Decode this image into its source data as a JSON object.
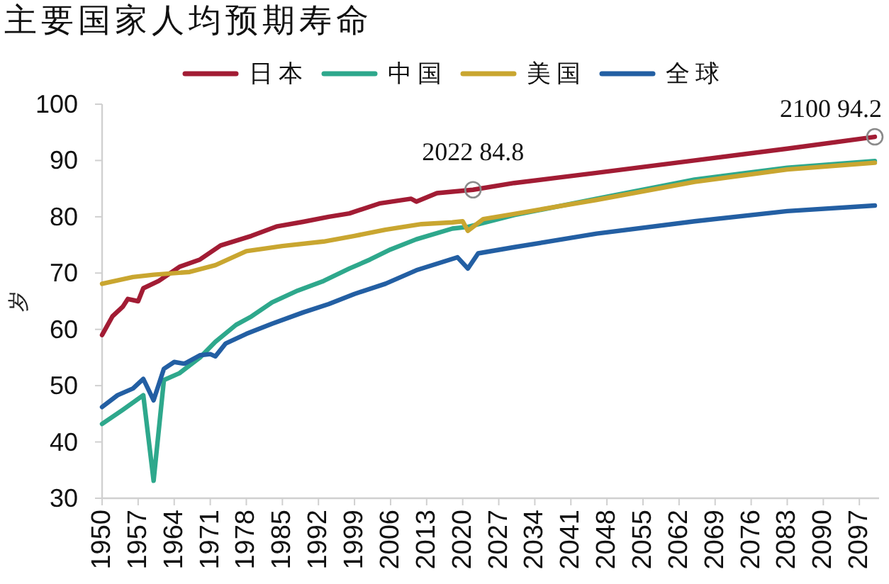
{
  "chart_data": {
    "type": "line",
    "title": "主要国家人均预期寿命",
    "ylabel": "岁",
    "xlim": [
      1950,
      2100
    ],
    "ylim": [
      30,
      100
    ],
    "xticks": [
      1950,
      1957,
      1964,
      1971,
      1978,
      1985,
      1992,
      1999,
      2006,
      2013,
      2020,
      2027,
      2034,
      2041,
      2048,
      2055,
      2062,
      2069,
      2076,
      2083,
      2090,
      2097
    ],
    "yticks": [
      30,
      40,
      50,
      60,
      70,
      80,
      90,
      100
    ],
    "legend": "top",
    "series": [
      {
        "name": "日本",
        "color": "#a21c34",
        "x": [
          1950,
          1952,
          1954,
          1955,
          1957,
          1958,
          1961,
          1965,
          1969,
          1973,
          1979,
          1984,
          1989,
          1994,
          1998,
          2004,
          2010,
          2011,
          2015,
          2022,
          2030,
          2046,
          2065,
          2083,
          2100
        ],
        "values": [
          59.0,
          62.3,
          64.0,
          65.4,
          65.0,
          67.3,
          68.6,
          71.1,
          72.4,
          74.9,
          76.6,
          78.3,
          79.1,
          80.0,
          80.6,
          82.4,
          83.2,
          82.7,
          84.2,
          84.8,
          86.0,
          87.8,
          90.0,
          92.1,
          94.2
        ]
      },
      {
        "name": "中国",
        "color": "#2ea88c",
        "x": [
          1950,
          1954,
          1958,
          1960,
          1962,
          1965,
          1969,
          1972,
          1976,
          1979,
          1983,
          1988,
          1993,
          1998,
          2002,
          2006,
          2011,
          2018,
          2021,
          2030,
          2046,
          2065,
          2083,
          2100
        ],
        "values": [
          43.2,
          45.7,
          48.3,
          33.1,
          51.0,
          52.2,
          55.0,
          57.8,
          60.8,
          62.3,
          64.8,
          66.9,
          68.6,
          70.8,
          72.4,
          74.2,
          76.0,
          77.9,
          78.2,
          80.3,
          83.2,
          86.6,
          88.7,
          89.9
        ]
      },
      {
        "name": "美国",
        "color": "#c9a630",
        "x": [
          1950,
          1956,
          1960,
          1967,
          1972,
          1978,
          1985,
          1993,
          1999,
          2005,
          2012,
          2018,
          2020,
          2021,
          2022,
          2024,
          2030,
          2046,
          2065,
          2083,
          2100
        ],
        "values": [
          68.1,
          69.3,
          69.7,
          70.2,
          71.4,
          73.9,
          74.8,
          75.6,
          76.6,
          77.7,
          78.7,
          79.0,
          79.2,
          77.5,
          78.2,
          79.6,
          80.5,
          83.0,
          86.2,
          88.4,
          89.6
        ]
      },
      {
        "name": "全球",
        "color": "#235fa3",
        "x": [
          1950,
          1953,
          1956,
          1958,
          1960,
          1962,
          1964,
          1966,
          1969,
          1971,
          1972,
          1974,
          1978,
          1983,
          1989,
          1994,
          1999,
          2005,
          2011,
          2019,
          2021,
          2023,
          2030,
          2046,
          2065,
          2083,
          2100
        ],
        "values": [
          46.2,
          48.3,
          49.5,
          51.2,
          47.4,
          53.0,
          54.2,
          53.9,
          55.4,
          55.6,
          55.2,
          57.5,
          59.2,
          61.0,
          63.0,
          64.5,
          66.3,
          68.1,
          70.5,
          72.8,
          70.8,
          73.5,
          74.6,
          77.0,
          79.2,
          81.0,
          82.0
        ]
      }
    ],
    "annotations": [
      {
        "text": "2022 84.8",
        "x": 2022,
        "y": 84.8
      },
      {
        "text": "2100 94.2",
        "x": 2100,
        "y": 94.2
      }
    ]
  }
}
